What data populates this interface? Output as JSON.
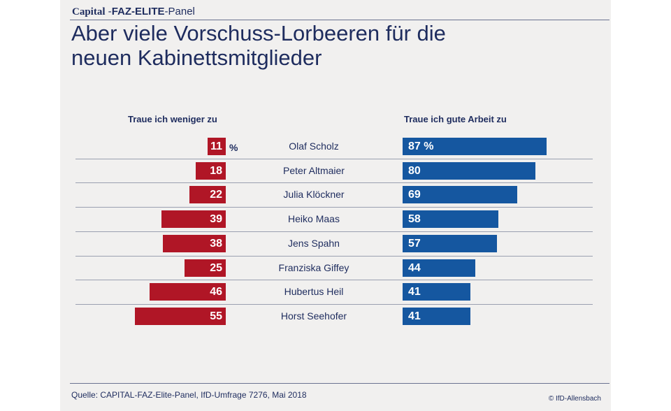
{
  "header": {
    "brand_capital": "Capital",
    "brand_dash": " -",
    "brand_faz": "FAZ-ELITE",
    "brand_panel": "-Panel",
    "title_line1": "Aber viele Vorschuss-Lorbeeren für die",
    "title_line2": "neuen Kabinettsmitglieder"
  },
  "footer": {
    "source": "Quelle: CAPITAL-FAZ-Elite-Panel, IfD-Umfrage 7276, Mai 2018",
    "copyright": "© IfD-Allensbach"
  },
  "colors": {
    "left_bar": "#b01626",
    "right_bar": "#1557a0",
    "text": "#1e2c5e"
  },
  "chart_data": {
    "type": "bar",
    "orientation": "horizontal-diverging",
    "unit": "%",
    "categories": [
      "Olaf Scholz",
      "Peter Altmaier",
      "Julia Klöckner",
      "Heiko Maas",
      "Jens Spahn",
      "Franziska Giffey",
      "Hubertus Heil",
      "Horst Seehofer"
    ],
    "series": [
      {
        "name": "Traue ich weniger zu",
        "values": [
          11,
          18,
          22,
          39,
          38,
          25,
          46,
          55
        ]
      },
      {
        "name": "Traue ich gute Arbeit zu",
        "values": [
          87,
          80,
          69,
          58,
          57,
          44,
          41,
          41
        ]
      }
    ],
    "first_label_suffix": "%"
  }
}
